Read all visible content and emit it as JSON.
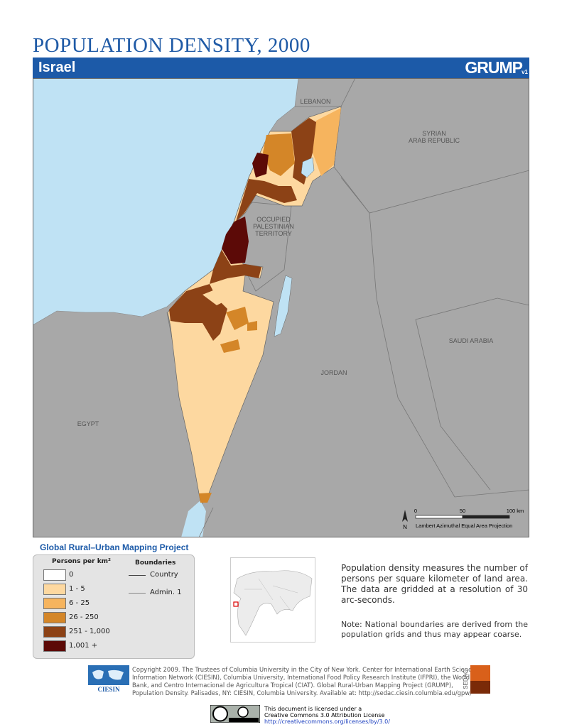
{
  "header": {
    "title": "POPULATION DENSITY, 2000",
    "country": "Israel",
    "logo": "GRUMP",
    "logo_version": "v1"
  },
  "map": {
    "labels": [
      "LEBANON",
      "SYRIAN",
      "ARAB REPUBLIC",
      "OCCUPIED",
      "PALESTINIAN",
      "TERRITORY",
      "SAUDI ARABIA",
      "JORDAN",
      "EGYPT"
    ],
    "scale_bar": {
      "ticks": [
        "0",
        "50",
        "100 km"
      ],
      "projection": "Lambert Azimuthal Equal Area Projection",
      "north": "N"
    }
  },
  "legend": {
    "heading": "Global Rural–Urban Mapping Project",
    "density_title": "Persons per km²",
    "classes": [
      {
        "label": "0",
        "color": "#ffffff"
      },
      {
        "label": "1 - 5",
        "color": "#fdd8a0"
      },
      {
        "label": "6 - 25",
        "color": "#f6b45e"
      },
      {
        "label": "26 - 250",
        "color": "#d48628"
      },
      {
        "label": "251 - 1,000",
        "color": "#8c4216"
      },
      {
        "label": "1,001 +",
        "color": "#5c0a07"
      }
    ],
    "boundaries_title": "Boundaries",
    "boundaries": [
      "Country",
      "Admin. 1"
    ]
  },
  "description": "Population density measures the number of persons per square kilometer of land area. The data are gridded at a resolution of 30 arc-seconds.",
  "note": "Note: National boundaries are derived from the population grids and thus may appear coarse.",
  "footer": {
    "copyright": "Copyright 2009. The Trustees of Columbia University in the City of New York. Center for International Earth Science Information Network (CIESIN), Columbia University, International Food Policy Research Institute (IFPRI), the World Bank, and Centro Internacional de Agricultura Tropical (CIAT). Global Rural-Urban Mapping Project (GRUMP), Population Density. Palisades, NY: CIESIN, Columbia University. Available at: http://sedac.ciesin.columbia.edu/gpw/",
    "ciesin": "CIESIN",
    "sedac": "SEDAC",
    "license_lines": [
      "This document is licensed under a",
      "Creative Commons 3.0 Attribution License",
      "http://creativecommons.org/licenses/by/3.0/"
    ]
  }
}
